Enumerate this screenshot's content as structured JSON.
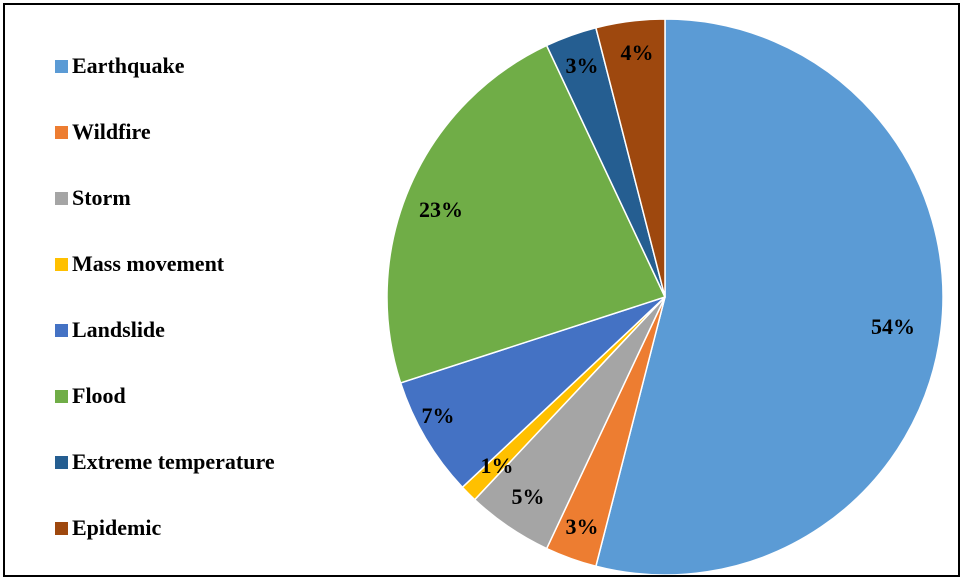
{
  "chart_data": {
    "type": "pie",
    "title": "",
    "categories": [
      "Earthquake",
      "Wildfire",
      "Storm",
      "Mass movement",
      "Landslide",
      "Flood",
      "Extreme temperature",
      "Epidemic"
    ],
    "values": [
      54,
      3,
      5,
      1,
      7,
      23,
      3,
      4
    ],
    "value_labels": [
      "54%",
      "3%",
      "5%",
      "1%",
      "7%",
      "23%",
      "3%",
      "4%"
    ],
    "colors": [
      "#5B9BD5",
      "#ED7D31",
      "#A5A5A5",
      "#FFC000",
      "#4472C4",
      "#70AD47",
      "#255E91",
      "#9E480E"
    ],
    "legend_position": "left"
  }
}
